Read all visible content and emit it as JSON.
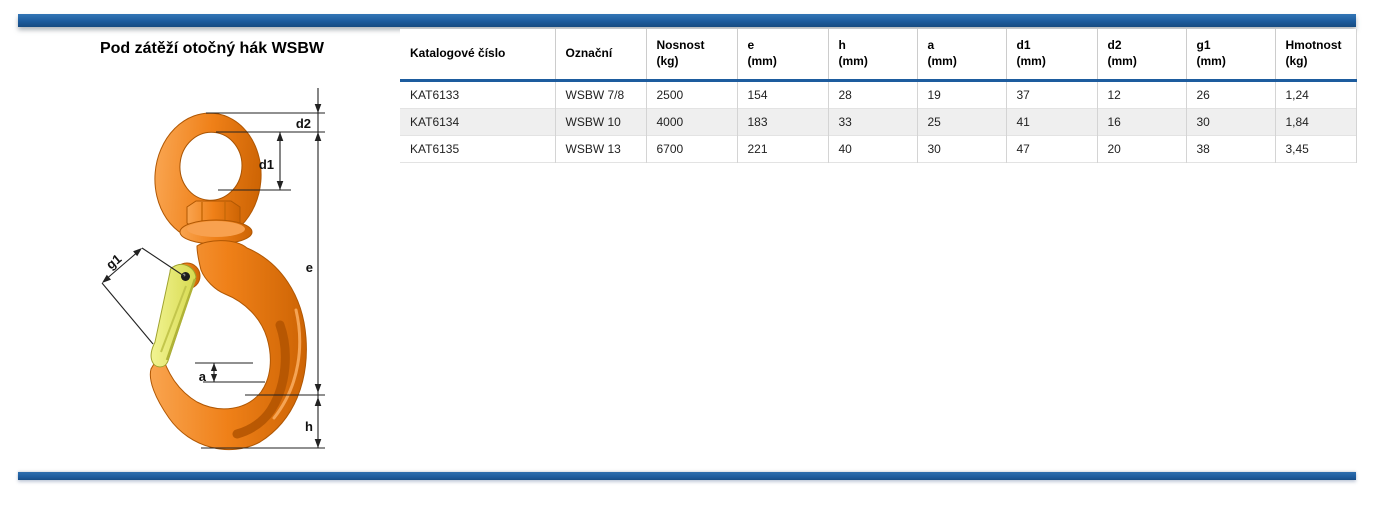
{
  "page": {
    "title": "Pod zátěží otočný hák WSBW"
  },
  "colors": {
    "bar_blue": "#1d5c9e",
    "hook_orange": "#ee7d12",
    "latch_yellow": "#e8ea7c",
    "alt_row_gray": "#efefef"
  },
  "diagram": {
    "description": "technical drawing of swivel eye hook with safety latch",
    "labels": {
      "d2": "d2",
      "d1": "d1",
      "e": "e",
      "g1": "g1",
      "a": "a",
      "h": "h"
    }
  },
  "table": {
    "columns": [
      {
        "label": "Katalogové číslo"
      },
      {
        "label": "Označní"
      },
      {
        "label": "Nosnost\n(kg)"
      },
      {
        "label": "e\n(mm)"
      },
      {
        "label": "h\n(mm)"
      },
      {
        "label": "a\n(mm)"
      },
      {
        "label": "d1\n(mm)"
      },
      {
        "label": "d2\n(mm)"
      },
      {
        "label": "g1\n(mm)"
      },
      {
        "label": "Hmotnost\n(kg)"
      }
    ],
    "rows": [
      [
        "KAT6133",
        "WSBW 7/8",
        "2500",
        "154",
        "28",
        "19",
        "37",
        "12",
        "26",
        "1,24"
      ],
      [
        "KAT6134",
        "WSBW 10",
        "4000",
        "183",
        "33",
        "25",
        "41",
        "16",
        "30",
        "1,84"
      ],
      [
        "KAT6135",
        "WSBW 13",
        "6700",
        "221",
        "40",
        "30",
        "47",
        "20",
        "38",
        "3,45"
      ]
    ]
  }
}
